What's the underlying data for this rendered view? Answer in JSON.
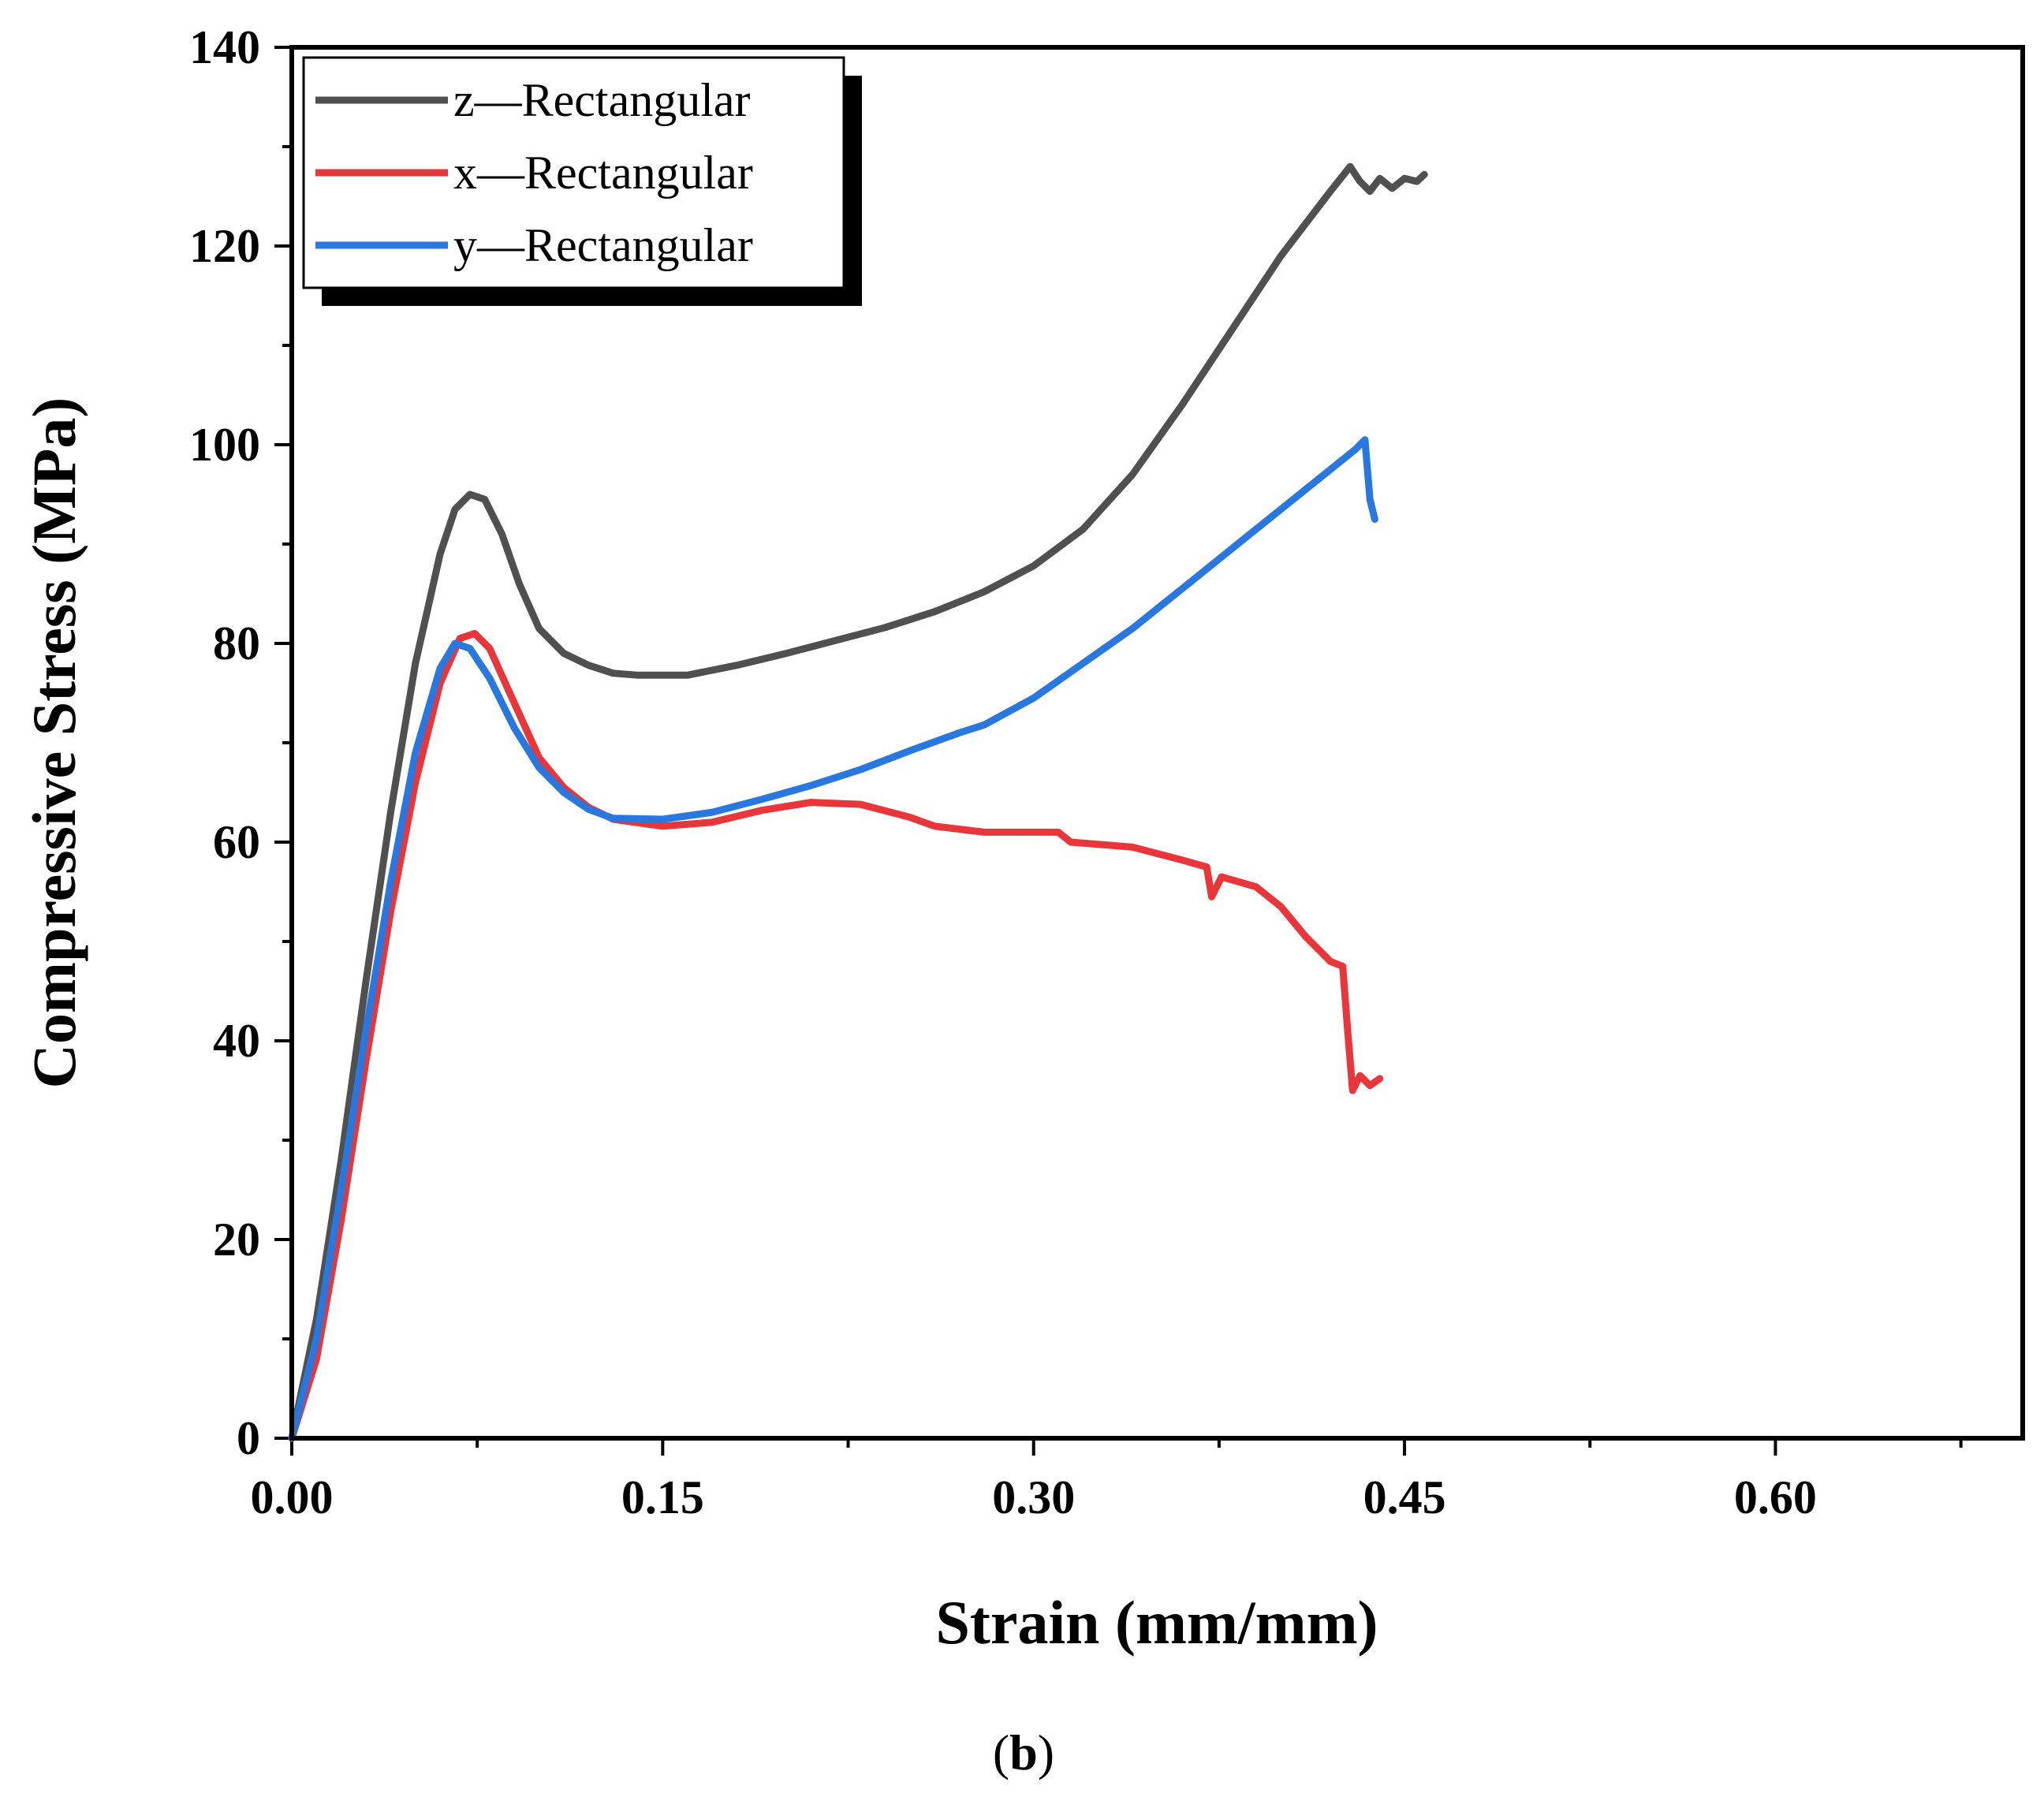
{
  "chart_data": {
    "type": "line",
    "xlabel": "Strain (mm/mm)",
    "ylabel": "Compressive Stress (MPa)",
    "xlim": [
      0,
      0.7
    ],
    "ylim": [
      0,
      140
    ],
    "x_ticks": [
      "0.00",
      "0.15",
      "0.30",
      "0.45",
      "0.60"
    ],
    "x_tick_values": [
      0,
      0.15,
      0.3,
      0.45,
      0.6
    ],
    "y_ticks": [
      "0",
      "20",
      "40",
      "60",
      "80",
      "100",
      "120",
      "140"
    ],
    "y_tick_values": [
      0,
      20,
      40,
      60,
      80,
      100,
      120,
      140
    ],
    "legend_position": "top-left",
    "series": [
      {
        "name": "z—Rectangular",
        "color": "#505050",
        "points": [
          [
            0,
            0
          ],
          [
            0.01,
            12
          ],
          [
            0.02,
            28
          ],
          [
            0.03,
            46
          ],
          [
            0.04,
            63
          ],
          [
            0.05,
            78
          ],
          [
            0.06,
            89
          ],
          [
            0.066,
            93.5
          ],
          [
            0.072,
            95
          ],
          [
            0.078,
            94.5
          ],
          [
            0.085,
            91
          ],
          [
            0.092,
            86
          ],
          [
            0.1,
            81.5
          ],
          [
            0.11,
            79
          ],
          [
            0.12,
            77.8
          ],
          [
            0.13,
            77
          ],
          [
            0.14,
            76.8
          ],
          [
            0.16,
            76.8
          ],
          [
            0.18,
            77.8
          ],
          [
            0.2,
            79
          ],
          [
            0.22,
            80.3
          ],
          [
            0.24,
            81.6
          ],
          [
            0.26,
            83.2
          ],
          [
            0.28,
            85.2
          ],
          [
            0.3,
            87.8
          ],
          [
            0.32,
            91.5
          ],
          [
            0.34,
            97
          ],
          [
            0.36,
            104
          ],
          [
            0.38,
            111.5
          ],
          [
            0.4,
            119
          ],
          [
            0.42,
            125.5
          ],
          [
            0.428,
            128
          ],
          [
            0.432,
            126.5
          ],
          [
            0.436,
            125.5
          ],
          [
            0.44,
            126.8
          ],
          [
            0.445,
            125.8
          ],
          [
            0.45,
            126.8
          ],
          [
            0.455,
            126.5
          ],
          [
            0.458,
            127.2
          ]
        ]
      },
      {
        "name": "x—Rectangular",
        "color": "#e8363a",
        "points": [
          [
            0,
            0
          ],
          [
            0.01,
            8
          ],
          [
            0.02,
            22
          ],
          [
            0.03,
            38
          ],
          [
            0.04,
            53
          ],
          [
            0.05,
            66
          ],
          [
            0.06,
            76
          ],
          [
            0.068,
            80.5
          ],
          [
            0.074,
            81
          ],
          [
            0.08,
            79.5
          ],
          [
            0.09,
            74
          ],
          [
            0.1,
            68.5
          ],
          [
            0.11,
            65.5
          ],
          [
            0.12,
            63.5
          ],
          [
            0.13,
            62.3
          ],
          [
            0.15,
            61.6
          ],
          [
            0.17,
            62
          ],
          [
            0.19,
            63.2
          ],
          [
            0.21,
            64
          ],
          [
            0.23,
            63.8
          ],
          [
            0.25,
            62.5
          ],
          [
            0.26,
            61.6
          ],
          [
            0.28,
            61
          ],
          [
            0.3,
            61
          ],
          [
            0.31,
            61
          ],
          [
            0.315,
            60
          ],
          [
            0.34,
            59.5
          ],
          [
            0.36,
            58.2
          ],
          [
            0.37,
            57.5
          ],
          [
            0.372,
            54.5
          ],
          [
            0.376,
            56.5
          ],
          [
            0.39,
            55.5
          ],
          [
            0.4,
            53.5
          ],
          [
            0.41,
            50.5
          ],
          [
            0.42,
            48
          ],
          [
            0.425,
            47.5
          ],
          [
            0.427,
            41
          ],
          [
            0.429,
            35
          ],
          [
            0.432,
            36.5
          ],
          [
            0.436,
            35.5
          ],
          [
            0.44,
            36.2
          ]
        ]
      },
      {
        "name": "y—Rectangular",
        "color": "#2878e0",
        "points": [
          [
            0,
            0
          ],
          [
            0.01,
            10
          ],
          [
            0.02,
            25
          ],
          [
            0.03,
            41
          ],
          [
            0.04,
            56
          ],
          [
            0.05,
            69
          ],
          [
            0.06,
            77.5
          ],
          [
            0.066,
            80
          ],
          [
            0.072,
            79.5
          ],
          [
            0.08,
            76.5
          ],
          [
            0.09,
            71.5
          ],
          [
            0.1,
            67.5
          ],
          [
            0.11,
            65
          ],
          [
            0.12,
            63.3
          ],
          [
            0.13,
            62.4
          ],
          [
            0.15,
            62.3
          ],
          [
            0.17,
            63
          ],
          [
            0.19,
            64.3
          ],
          [
            0.21,
            65.7
          ],
          [
            0.23,
            67.3
          ],
          [
            0.25,
            69.2
          ],
          [
            0.27,
            71
          ],
          [
            0.28,
            71.8
          ],
          [
            0.3,
            74.5
          ],
          [
            0.32,
            78
          ],
          [
            0.34,
            81.5
          ],
          [
            0.36,
            85.5
          ],
          [
            0.38,
            89.5
          ],
          [
            0.4,
            93.5
          ],
          [
            0.42,
            97.5
          ],
          [
            0.43,
            99.5
          ],
          [
            0.434,
            100.5
          ],
          [
            0.436,
            94.5
          ],
          [
            0.438,
            92.5
          ]
        ]
      }
    ]
  },
  "caption": {
    "open": "(",
    "letter": "b",
    "close": ")"
  }
}
